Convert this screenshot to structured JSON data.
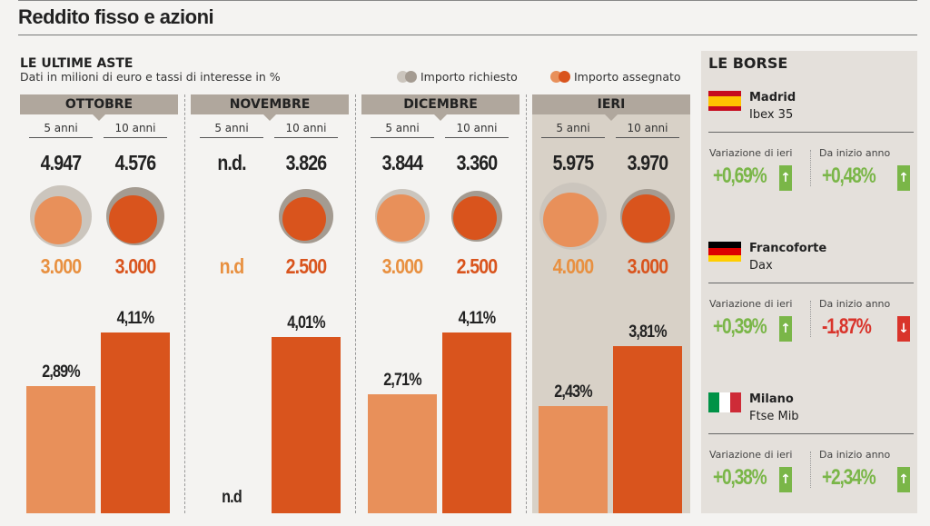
{
  "header": {
    "title": "Reddito fisso e azioni"
  },
  "aste": {
    "title": "LE ULTIME ASTE",
    "subtitle": "Dati in milioni di euro e tassi di interesse in %",
    "legend_requested": "Importo richiesto",
    "legend_assigned": "Importo assegnato"
  },
  "colors": {
    "requested_light": "#cbc5bd",
    "requested_dark": "#a49b91",
    "assigned_light": "#e8905a",
    "assigned_dark": "#d9541d",
    "green": "#7ab648",
    "red": "#d9342b"
  },
  "chart_data": {
    "type": "bar",
    "title": "LE ULTIME ASTE",
    "categories": [
      "OTTOBRE",
      "NOVEMBRE",
      "DICEMBRE",
      "IERI"
    ],
    "maturity_labels": [
      "5 anni",
      "10 anni"
    ],
    "requested": {
      "5y": [
        "4.947",
        "n.d.",
        "3.844",
        "5.975"
      ],
      "10y": [
        "4.576",
        "3.826",
        "3.360",
        "3.970"
      ]
    },
    "assigned": {
      "5y": [
        "3.000",
        "n.d",
        "3.000",
        "4.000"
      ],
      "10y": [
        "3.000",
        "2.500",
        "2.500",
        "3.000"
      ]
    },
    "requested_values": {
      "5y": [
        4947,
        null,
        3844,
        5975
      ],
      "10y": [
        4576,
        3826,
        3360,
        3970
      ]
    },
    "assigned_values": {
      "5y": [
        3000,
        null,
        3000,
        4000
      ],
      "10y": [
        3000,
        2500,
        2500,
        3000
      ]
    },
    "rates": {
      "5y": [
        2.89,
        null,
        2.71,
        2.43
      ],
      "10y": [
        4.11,
        4.01,
        4.11,
        3.81
      ]
    },
    "rate_labels": {
      "5y": [
        "2,89%",
        "n.d",
        "2,71%",
        "2,43%"
      ],
      "10y": [
        "4,11%",
        "4,01%",
        "4,11%",
        "3,81%"
      ]
    }
  },
  "borse": {
    "title": "LE BORSE",
    "col1": "Variazione di ieri",
    "col2": "Da inizio anno",
    "items": [
      {
        "city": "Madrid",
        "index": "Ibex 35",
        "day": "+0,69%",
        "ytd": "+0,48%",
        "day_dir": "up",
        "ytd_dir": "up"
      },
      {
        "city": "Francoforte",
        "index": "Dax",
        "day": "+0,39%",
        "ytd": "-1,87%",
        "day_dir": "up",
        "ytd_dir": "down"
      },
      {
        "city": "Milano",
        "index": "Ftse Mib",
        "day": "+0,38%",
        "ytd": "+2,34%",
        "day_dir": "up",
        "ytd_dir": "up"
      }
    ]
  }
}
